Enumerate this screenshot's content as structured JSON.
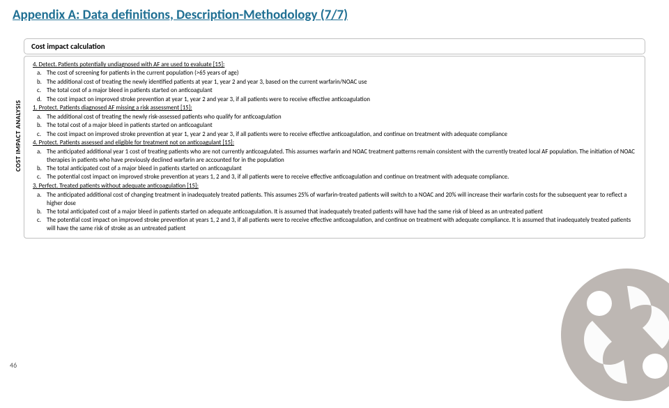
{
  "title": "Appendix A: Data definitions, Description-Methodology (7/7)",
  "sectionHeader": "Cost impact calculation",
  "verticalLabel": "COST IMPACT ANALYSIS",
  "pageNumber": "46",
  "sections": [
    {
      "heading": "4. Detect. Patients potentially undiagnosed with AF are used to evaluate [15]:",
      "items": [
        {
          "m": "a.",
          "t": "The cost of screening for patients in the current population (>65 years of age)"
        },
        {
          "m": "b.",
          "t": "The additional cost of treating the newly identified patients at year 1, year 2 and year 3, based on the current warfarin/NOAC use"
        },
        {
          "m": "c.",
          "t": "The total cost of a major bleed in patients started on anticoagulant"
        },
        {
          "m": "d.",
          "t": "The cost impact on improved stroke prevention at year 1, year 2 and year 3, if all patients were to receive effective anticoagulation"
        }
      ]
    },
    {
      "heading": "1. Protect. Patients diagnosed AF missing a risk assessment [15]:",
      "items": [
        {
          "m": "a.",
          "t": "The additional cost of treating the newly risk-assessed patients who qualify for anticoagulation"
        },
        {
          "m": "b.",
          "t": "The total cost of a major bleed in patients started on anticoagulant"
        },
        {
          "m": "c.",
          "t": "The cost impact on improved stroke prevention at year 1, year 2 and year 3, if all patients were to receive effective anticoagulation, and continue on treatment with adequate compliance"
        }
      ]
    },
    {
      "heading": "4. Protect. Patients assessed and eligible for treatment not on anticoagulant [15]:",
      "items": [
        {
          "m": "a.",
          "t": "The anticipated additional year 1 cost of treating patients who are not currently anticoagulated. This assumes warfarin and NOAC treatment patterns remain consistent with the currently treated local AF population. The initiation of NOAC therapies in patients who have previously declined warfarin are accounted for in the population"
        },
        {
          "m": "b.",
          "t": "The total anticipated cost of a major bleed in patients started on anticoagulant"
        },
        {
          "m": "c.",
          "t": "The potential cost impact on improved stroke prevention at years 1, 2 and 3, if all patients were to receive effective anticoagulation and continue on treatment with adequate compliance."
        }
      ]
    },
    {
      "heading": "3. Perfect. Treated patients without adequate anticoagulation [15]:",
      "items": [
        {
          "m": "a.",
          "t": "The anticipated additional cost of changing treatment in inadequately treated patients. This assumes 25% of warfarin-treated patients will switch to a NOAC and 20% will increase their warfarin costs for the subsequent year to reflect a higher dose"
        },
        {
          "m": "b.",
          "t": "The total anticipated cost of a major bleed in patients started on adequate anticoagulation. It is assumed that inadequately treated patients will have had the same risk of bleed as an untreated patient"
        },
        {
          "m": "c.",
          "t": "The potential cost impact on improved stroke prevention at years 1, 2 and 3, if all patients were to receive effective anticoagulation, and continue on treatment with adequate compliance. It is assumed that inadequately treated patients will have the same risk of stroke as an untreated patient"
        }
      ]
    }
  ]
}
